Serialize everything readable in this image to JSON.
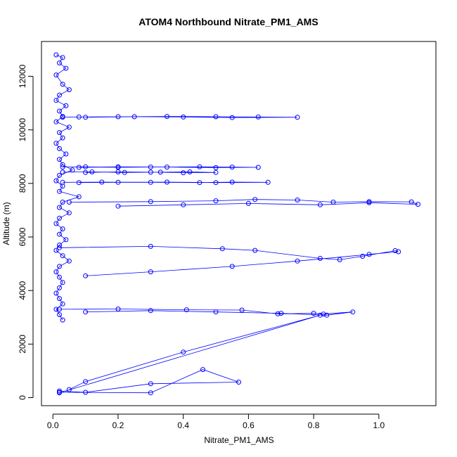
{
  "chart_data": {
    "type": "line",
    "title": "ATOM4 Northbound Nitrate_PM1_AMS",
    "xlabel": "Nitrate_PM1_AMS",
    "ylabel": "Altitude (m)",
    "xlim": [
      -0.035,
      1.175
    ],
    "ylim": [
      -300,
      13300
    ],
    "x_ticks": [
      0.0,
      0.2,
      0.4,
      0.6,
      0.8,
      1.0
    ],
    "x_tick_labels": [
      "0.0",
      "0.2",
      "0.4",
      "0.6",
      "0.8",
      "1.0"
    ],
    "y_ticks": [
      0,
      2000,
      4000,
      6000,
      8000,
      10000,
      12000
    ],
    "y_tick_labels": [
      "0",
      "2000",
      "4000",
      "6000",
      "8000",
      "10000",
      "12000"
    ],
    "grid": false,
    "series_color": "#0000ff",
    "marker": "open-circle",
    "series": [
      {
        "x": [
          0.01,
          0.03,
          0.02,
          0.04,
          0.01,
          0.03,
          0.05,
          0.02,
          0.01,
          0.04,
          0.02,
          0.03,
          0.01,
          0.05,
          0.02,
          0.03,
          0.01,
          0.02,
          0.04,
          0.02,
          0.03,
          0.06,
          0.02,
          0.01,
          0.03,
          0.02,
          0.08,
          0.03,
          0.02,
          0.05,
          0.02,
          0.01,
          0.03,
          0.02,
          0.04,
          0.02,
          0.01,
          0.03,
          0.05,
          0.02,
          0.01,
          0.02,
          0.03,
          0.02,
          0.01,
          0.02,
          0.03,
          0.01,
          0.02,
          0.03
        ],
        "y": [
          12800,
          12700,
          12500,
          12300,
          12050,
          11700,
          11500,
          11300,
          11100,
          10900,
          10700,
          10500,
          10300,
          10100,
          9900,
          9700,
          9500,
          9300,
          9100,
          8900,
          8700,
          8500,
          8300,
          8100,
          7900,
          7700,
          7500,
          7300,
          7100,
          6900,
          6700,
          6500,
          6300,
          6100,
          5900,
          5700,
          5500,
          5300,
          5100,
          4900,
          4700,
          4500,
          4300,
          4100,
          3900,
          3700,
          3500,
          3300,
          3100,
          2900
        ]
      },
      {
        "x": [
          0.03,
          0.08,
          0.2,
          0.35,
          0.5,
          0.63,
          0.75,
          0.55,
          0.4,
          0.25,
          0.1
        ],
        "y": [
          10470,
          10480,
          10490,
          10500,
          10490,
          10480,
          10470,
          10460,
          10480,
          10490,
          10470
        ]
      },
      {
        "x": [
          0.03,
          0.1,
          0.2,
          0.3,
          0.45,
          0.55,
          0.63,
          0.5,
          0.35,
          0.2,
          0.08
        ],
        "y": [
          8610,
          8620,
          8600,
          8610,
          8620,
          8610,
          8600,
          8590,
          8610,
          8620,
          8600
        ]
      },
      {
        "x": [
          0.03,
          0.12,
          0.22,
          0.33,
          0.42,
          0.5,
          0.4,
          0.3,
          0.2,
          0.1
        ],
        "y": [
          8420,
          8430,
          8410,
          8420,
          8430,
          8410,
          8400,
          8420,
          8430,
          8410
        ]
      },
      {
        "x": [
          0.03,
          0.15,
          0.3,
          0.45,
          0.55,
          0.66,
          0.5,
          0.35,
          0.2,
          0.08
        ],
        "y": [
          8040,
          8050,
          8040,
          8030,
          8050,
          8040,
          8030,
          8050,
          8040,
          8030
        ]
      },
      {
        "x": [
          0.05,
          0.3,
          0.5,
          0.62,
          0.75,
          0.86,
          0.97,
          1.1,
          1.12,
          0.97,
          0.82,
          0.6,
          0.4,
          0.2
        ],
        "y": [
          7300,
          7320,
          7350,
          7400,
          7380,
          7300,
          7320,
          7310,
          7220,
          7280,
          7200,
          7250,
          7200,
          7150
        ]
      },
      {
        "x": [
          0.02,
          0.3,
          0.52,
          0.62,
          0.82,
          0.88,
          0.95,
          1.05,
          1.06,
          0.97,
          0.75,
          0.55,
          0.3,
          0.1
        ],
        "y": [
          5600,
          5650,
          5560,
          5500,
          5200,
          5150,
          5280,
          5490,
          5450,
          5350,
          5100,
          4900,
          4700,
          4550
        ]
      },
      {
        "x": [
          0.02,
          0.2,
          0.41,
          0.58,
          0.69,
          0.8,
          0.83,
          0.92,
          0.84,
          0.7,
          0.5,
          0.3,
          0.1
        ],
        "y": [
          3300,
          3310,
          3280,
          3270,
          3130,
          3150,
          3120,
          3200,
          3080,
          3150,
          3200,
          3250,
          3200
        ]
      },
      {
        "x": [
          0.02,
          0.82,
          0.4,
          0.1,
          0.05
        ],
        "y": [
          180,
          3080,
          1700,
          600,
          300
        ]
      },
      {
        "x": [
          0.02,
          0.3,
          0.46,
          0.57,
          0.3,
          0.1,
          0.02
        ],
        "y": [
          200,
          180,
          1050,
          580,
          520,
          200,
          250
        ]
      }
    ]
  }
}
